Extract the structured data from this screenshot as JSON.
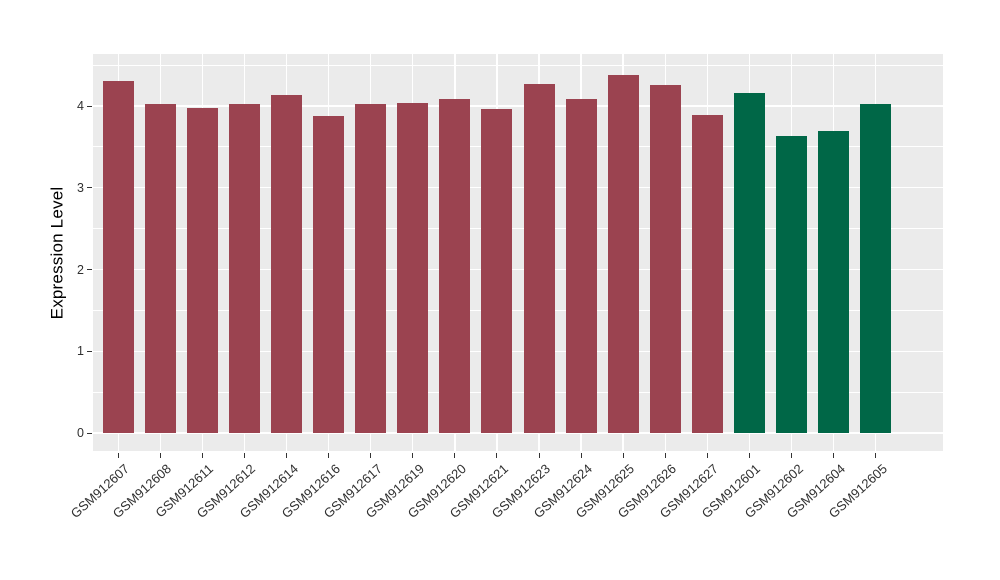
{
  "chart_data": {
    "type": "bar",
    "title": "",
    "xlabel": "",
    "ylabel": "Expression Level",
    "categories": [
      "GSM912607",
      "GSM912608",
      "GSM912611",
      "GSM912612",
      "GSM912614",
      "GSM912616",
      "GSM912617",
      "GSM912619",
      "GSM912620",
      "GSM912621",
      "GSM912623",
      "GSM912624",
      "GSM912625",
      "GSM912626",
      "GSM912627",
      "GSM912601",
      "GSM912602",
      "GSM912604",
      "GSM912605"
    ],
    "values": [
      4.3,
      4.03,
      3.97,
      4.03,
      4.14,
      3.88,
      4.02,
      4.04,
      4.09,
      3.96,
      4.27,
      4.08,
      4.38,
      4.26,
      3.89,
      4.16,
      3.63,
      3.69,
      4.02
    ],
    "groups": [
      "group1",
      "group1",
      "group1",
      "group1",
      "group1",
      "group1",
      "group1",
      "group1",
      "group1",
      "group1",
      "group1",
      "group1",
      "group1",
      "group1",
      "group1",
      "group2",
      "group2",
      "group2",
      "group2"
    ],
    "palette": {
      "group1": "#9B4350",
      "group2": "#006747"
    },
    "yticks": [
      0,
      1,
      2,
      3,
      4
    ],
    "ylim": [
      -0.22,
      4.64
    ],
    "grid": "on",
    "legend": "none",
    "panel_bg": "#EBEBEB",
    "grid_color": "#FFFFFF",
    "axis_text_color": "#303030"
  }
}
